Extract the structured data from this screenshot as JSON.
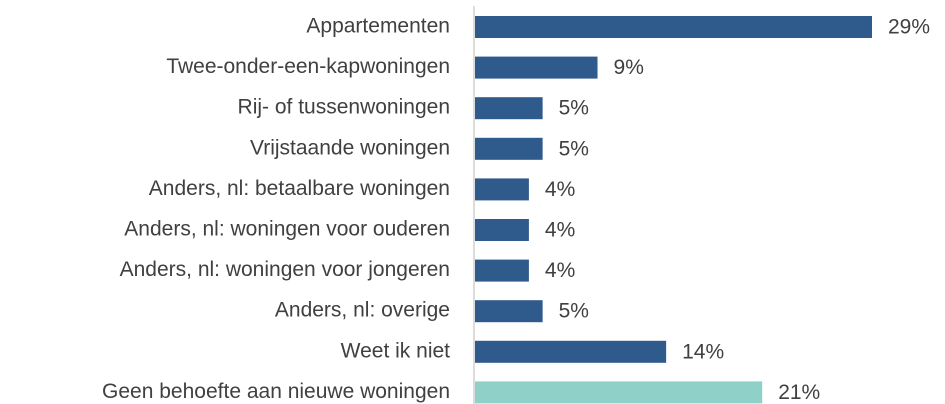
{
  "chart_data": {
    "type": "barh",
    "categories": [
      "Appartementen",
      "Twee-onder-een-kapwoningen",
      "Rij- of tussenwoningen",
      "Vrijstaande woningen",
      "Anders, nl: betaalbare woningen",
      "Anders, nl: woningen voor ouderen",
      "Anders, nl: woningen voor jongeren",
      "Anders, nl: overige",
      "Weet ik niet",
      "Geen behoefte aan nieuwe woningen"
    ],
    "values": [
      29,
      9,
      5,
      5,
      4,
      4,
      4,
      5,
      14,
      21
    ],
    "value_labels": [
      "29%",
      "9%",
      "5%",
      "5%",
      "4%",
      "4%",
      "4%",
      "5%",
      "14%",
      "21%"
    ],
    "colors": [
      "#2f5a8c",
      "#2f5a8c",
      "#2f5a8c",
      "#2f5a8c",
      "#2f5a8c",
      "#2f5a8c",
      "#2f5a8c",
      "#2f5a8c",
      "#2f5a8c",
      "#8fd0c9"
    ]
  }
}
